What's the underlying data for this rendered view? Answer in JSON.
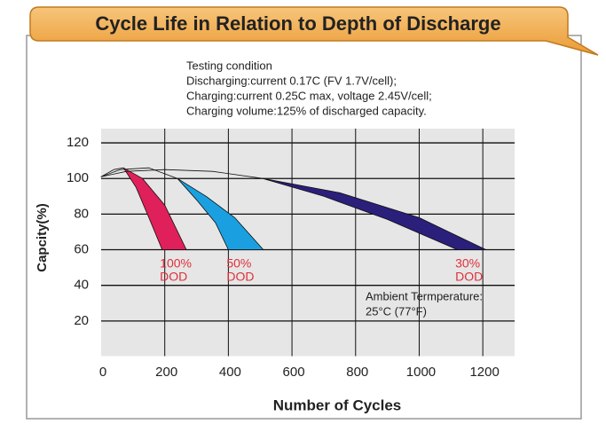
{
  "chart_data": {
    "type": "band",
    "title": "Cycle Life in Relation to Depth of Discharge",
    "xlabel": "Number of Cycles",
    "ylabel": "Capcity(%)",
    "annotations": [
      "Testing condition",
      "Discharging:current 0.17C (FV 1.7V/cell);",
      "Charging:current 0.25C max, voltage 2.45V/cell;",
      "Charging volume:125% of discharged capacity."
    ],
    "ambient": [
      "Ambient Termperature:",
      "25°C (77°F)"
    ],
    "xlim": [
      0,
      1300
    ],
    "ylim": [
      0,
      128
    ],
    "xticks": [
      0,
      200,
      400,
      600,
      800,
      1000,
      1200
    ],
    "yticks": [
      20,
      40,
      60,
      80,
      100,
      120
    ],
    "grid": true,
    "series": [
      {
        "label": [
          "100%",
          "DOD"
        ],
        "color": "#e0205a",
        "label_color": "#e0303a",
        "x": [
          0,
          40,
          70,
          110,
          150,
          192
        ],
        "values": [
          101,
          105,
          106,
          95,
          78,
          60
        ],
        "x_right": [
          0,
          40,
          70,
          130,
          200,
          268
        ],
        "values_right": [
          101,
          105,
          106,
          100,
          85,
          60
        ]
      },
      {
        "label": [
          "50%",
          "DOD"
        ],
        "color": "#1aa0e0",
        "label_color": "#e0303a",
        "x": [
          0,
          60,
          150,
          240,
          300,
          360,
          400
        ],
        "values": [
          101,
          105,
          106,
          100,
          88,
          75,
          60
        ],
        "x_right": [
          0,
          60,
          150,
          240,
          330,
          420,
          510
        ],
        "values_right": [
          101,
          105,
          106,
          100,
          90,
          78,
          60
        ]
      },
      {
        "label": [
          "30%",
          "DOD"
        ],
        "color": "#2a1f7a",
        "label_color": "#e0303a",
        "x": [
          0,
          80,
          200,
          350,
          508,
          700,
          900,
          1120
        ],
        "values": [
          101,
          104,
          105,
          104,
          100,
          90,
          77,
          60
        ],
        "x_right": [
          0,
          80,
          200,
          350,
          508,
          750,
          1000,
          1210
        ],
        "values_right": [
          101,
          104,
          105,
          104,
          100,
          92,
          78,
          60
        ]
      }
    ]
  }
}
